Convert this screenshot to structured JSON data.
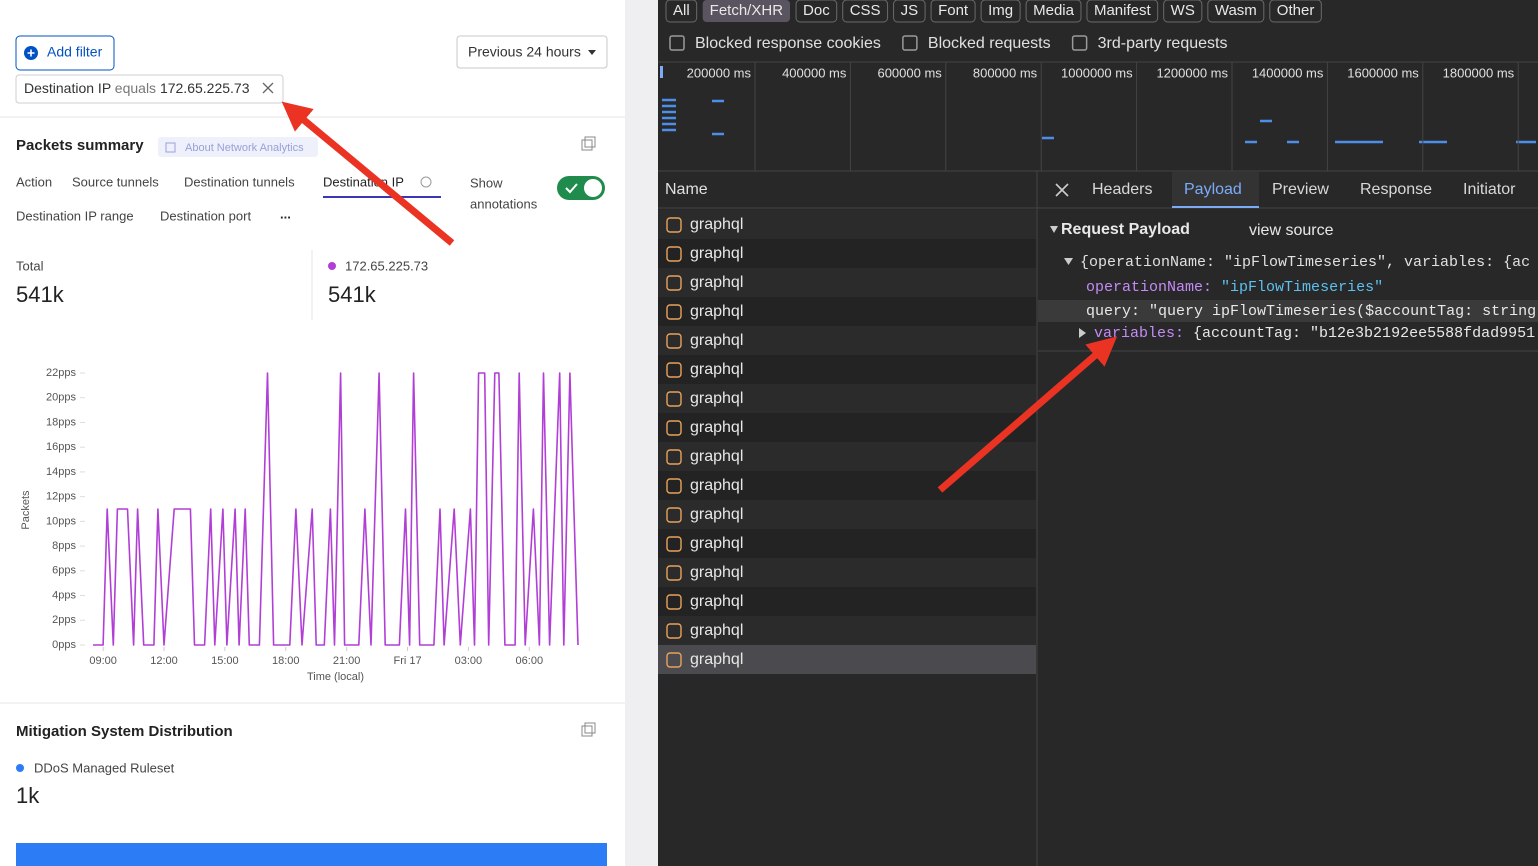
{
  "analytics": {
    "add_filter": "Add filter",
    "time_range": "Previous 24 hours",
    "filter": {
      "field": "Destination IP",
      "operator": "equals",
      "value": "172.65.225.73"
    },
    "packets_summary": {
      "title": "Packets summary",
      "about": "About Network Analytics",
      "tabs": [
        "Action",
        "Source tunnels",
        "Destination tunnels",
        "Destination IP"
      ],
      "tabs_row2": [
        "Destination IP range",
        "Destination port"
      ],
      "more": "...",
      "show_annotations": [
        "Show",
        "annotations"
      ],
      "total_label": "Total",
      "total": "541k",
      "series_label": "172.65.225.73",
      "series_total": "541k",
      "chart": {
        "type": "line",
        "xlabel": "Time (local)",
        "ylabel": "Packets",
        "color": "#b13fd6",
        "grid": false,
        "x": [
          -0.5,
          0,
          0.2,
          0.5,
          0.7,
          1.2,
          1.5,
          1.7,
          2.0,
          2.5,
          2.7,
          3.0,
          3.5,
          4.3,
          4.5,
          5.0,
          5.3,
          5.5,
          5.9,
          6.1,
          6.5,
          6.7,
          7.0,
          7.2,
          7.7,
          8.1,
          8.4,
          9.2,
          9.5,
          9.8,
          10.3,
          10.5,
          10.9,
          11.2,
          11.4,
          11.7,
          11.9,
          12.6,
          12.9,
          13.2,
          13.6,
          13.9,
          14.6,
          14.9,
          15.1,
          15.3,
          15.6,
          16.3,
          16.6,
          16.8,
          17.3,
          17.6,
          18.1,
          18.3,
          18.5,
          18.8,
          19.0,
          19.3,
          19.5,
          19.8,
          20.3,
          20.5,
          20.8,
          21.2,
          21.5,
          21.7,
          22.0,
          22.5,
          22.7,
          23.0,
          23.2,
          23.4
        ],
        "values": [
          0,
          0,
          11,
          0,
          11,
          11,
          0,
          11,
          0,
          0,
          11,
          0,
          11,
          11,
          0,
          0,
          11,
          0,
          11,
          0,
          11,
          0,
          11,
          0,
          0,
          22,
          0,
          0,
          11,
          0,
          11,
          0,
          0,
          11,
          0,
          22,
          0,
          0,
          11,
          0,
          22,
          0,
          0,
          11,
          0,
          22,
          0,
          0,
          11,
          0,
          11,
          0,
          11,
          0,
          22,
          22,
          0,
          22,
          22,
          0,
          0,
          22,
          0,
          11,
          0,
          22,
          0,
          22,
          0,
          22,
          11,
          0
        ],
        "xlim": [
          -0.5,
          23.4
        ],
        "ylim": [
          0,
          22
        ],
        "xticks": [
          {
            "value": 0,
            "label": "09:00"
          },
          {
            "value": 3,
            "label": "12:00"
          },
          {
            "value": 6,
            "label": "15:00"
          },
          {
            "value": 9,
            "label": "18:00"
          },
          {
            "value": 12,
            "label": "21:00"
          },
          {
            "value": 15,
            "label": "Fri 17"
          },
          {
            "value": 18,
            "label": "03:00"
          },
          {
            "value": 21,
            "label": "06:00"
          }
        ],
        "yticks": [
          {
            "value": 0,
            "label": "0pps"
          },
          {
            "value": 2,
            "label": "2pps"
          },
          {
            "value": 4,
            "label": "4pps"
          },
          {
            "value": 6,
            "label": "6pps"
          },
          {
            "value": 8,
            "label": "8pps"
          },
          {
            "value": 10,
            "label": "10pps"
          },
          {
            "value": 12,
            "label": "12pps"
          },
          {
            "value": 14,
            "label": "14pps"
          },
          {
            "value": 16,
            "label": "16pps"
          },
          {
            "value": 18,
            "label": "18pps"
          },
          {
            "value": 20,
            "label": "20pps"
          },
          {
            "value": 22,
            "label": "22pps"
          }
        ]
      }
    },
    "mitigation": {
      "title": "Mitigation System Distribution",
      "legend": "DDoS Managed Ruleset",
      "total": "1k"
    }
  },
  "devtools": {
    "filters": [
      "All",
      "Fetch/XHR",
      "Doc",
      "CSS",
      "JS",
      "Font",
      "Img",
      "Media",
      "Manifest",
      "WS",
      "Wasm",
      "Other"
    ],
    "selected_filter": 1,
    "checkboxes": [
      "Blocked response cookies",
      "Blocked requests",
      "3rd-party requests"
    ],
    "timeline_ticks": [
      "200000 ms",
      "400000 ms",
      "600000 ms",
      "800000 ms",
      "1000000 ms",
      "1200000 ms",
      "1400000 ms",
      "1600000 ms",
      "1800000 ms"
    ],
    "name_header": "Name",
    "tabs": [
      "Headers",
      "Payload",
      "Preview",
      "Response",
      "Initiator"
    ],
    "active_tab": 1,
    "requests": [
      "graphql",
      "graphql",
      "graphql",
      "graphql",
      "graphql",
      "graphql",
      "graphql",
      "graphql",
      "graphql",
      "graphql",
      "graphql",
      "graphql",
      "graphql",
      "graphql",
      "graphql",
      "graphql"
    ],
    "selected_request": 15,
    "payload": {
      "title": "Request Payload",
      "view_source": "view source",
      "summary": "{operationName: \"ipFlowTimeseries\", variables: {ac",
      "fields": [
        {
          "key": "operationName:",
          "value": "\"ipFlowTimeseries\""
        },
        {
          "key": "query:",
          "value": "\"query ipFlowTimeseries($accountTag: string"
        },
        {
          "key": "variables:",
          "value": "{accountTag: \"b12e3b2192ee5588fdad9951"
        }
      ]
    }
  }
}
